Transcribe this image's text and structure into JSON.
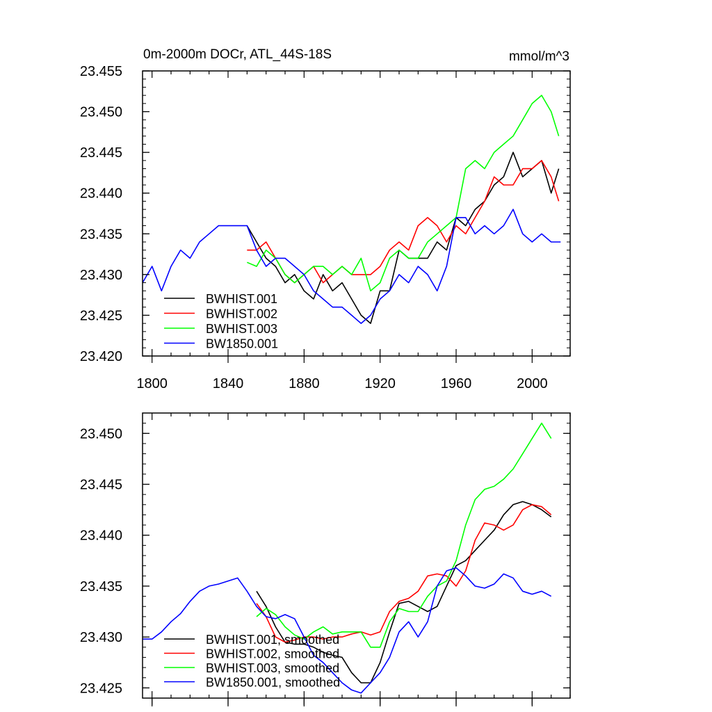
{
  "chart_data": [
    {
      "type": "line",
      "title": "0m-2000m DOCr, ATL_44S-18S",
      "units": "mmol/m^3",
      "xlim": [
        1795,
        2020
      ],
      "ylim": [
        23.42,
        23.455
      ],
      "x_ticks": [
        1800,
        1840,
        1880,
        1920,
        1960,
        2000
      ],
      "x_tick_labels": [
        "1800",
        "1840",
        "1880",
        "1920",
        "1960",
        "2000"
      ],
      "y_ticks": [
        23.42,
        23.425,
        23.43,
        23.435,
        23.44,
        23.445,
        23.45,
        23.455
      ],
      "y_tick_labels": [
        "23.420",
        "23.425",
        "23.430",
        "23.435",
        "23.440",
        "23.445",
        "23.450",
        "23.455"
      ],
      "legend_position": "bottom-left",
      "series": [
        {
          "name": "BWHIST.001",
          "color": "#000000",
          "x": [
            1850,
            1855,
            1860,
            1865,
            1870,
            1875,
            1880,
            1885,
            1890,
            1895,
            1900,
            1905,
            1910,
            1915,
            1920,
            1925,
            1930,
            1935,
            1940,
            1945,
            1950,
            1955,
            1960,
            1965,
            1970,
            1975,
            1980,
            1985,
            1990,
            1995,
            2000,
            2005,
            2010,
            2014
          ],
          "values": [
            23.436,
            23.434,
            23.432,
            23.431,
            23.429,
            23.43,
            23.428,
            23.427,
            23.43,
            23.428,
            23.429,
            23.427,
            23.425,
            23.424,
            23.428,
            23.428,
            23.433,
            23.432,
            23.432,
            23.432,
            23.434,
            23.433,
            23.437,
            23.436,
            23.438,
            23.439,
            23.441,
            23.442,
            23.445,
            23.442,
            23.443,
            23.444,
            23.44,
            23.443
          ]
        },
        {
          "name": "BWHIST.002",
          "color": "#ff0000",
          "x": [
            1850,
            1855,
            1860,
            1865,
            1870,
            1875,
            1880,
            1885,
            1890,
            1895,
            1900,
            1905,
            1910,
            1915,
            1920,
            1925,
            1930,
            1935,
            1940,
            1945,
            1950,
            1955,
            1960,
            1965,
            1970,
            1975,
            1980,
            1985,
            1990,
            1995,
            2000,
            2005,
            2010,
            2014
          ],
          "values": [
            23.433,
            23.433,
            23.434,
            23.432,
            23.43,
            23.429,
            23.43,
            23.431,
            23.429,
            23.43,
            23.431,
            23.43,
            23.43,
            23.43,
            23.431,
            23.433,
            23.434,
            23.433,
            23.436,
            23.437,
            23.436,
            23.434,
            23.436,
            23.435,
            23.437,
            23.439,
            23.442,
            23.441,
            23.441,
            23.443,
            23.443,
            23.444,
            23.442,
            23.439
          ]
        },
        {
          "name": "BWHIST.003",
          "color": "#00ff00",
          "x": [
            1850,
            1855,
            1860,
            1865,
            1870,
            1875,
            1880,
            1885,
            1890,
            1895,
            1900,
            1905,
            1910,
            1915,
            1920,
            1925,
            1930,
            1935,
            1940,
            1945,
            1950,
            1955,
            1960,
            1965,
            1970,
            1975,
            1980,
            1985,
            1990,
            1995,
            2000,
            2005,
            2010,
            2014
          ],
          "values": [
            23.4315,
            23.431,
            23.433,
            23.432,
            23.43,
            23.429,
            23.43,
            23.431,
            23.431,
            23.43,
            23.431,
            23.43,
            23.432,
            23.428,
            23.429,
            23.432,
            23.433,
            23.432,
            23.432,
            23.434,
            23.435,
            23.436,
            23.437,
            23.443,
            23.444,
            23.443,
            23.445,
            23.446,
            23.447,
            23.449,
            23.451,
            23.452,
            23.45,
            23.447
          ]
        },
        {
          "name": "BW1850.001",
          "color": "#0000ff",
          "x": [
            1795,
            1800,
            1805,
            1810,
            1815,
            1820,
            1825,
            1830,
            1835,
            1840,
            1845,
            1850,
            1855,
            1860,
            1865,
            1870,
            1875,
            1880,
            1885,
            1890,
            1895,
            1900,
            1905,
            1910,
            1915,
            1920,
            1925,
            1930,
            1935,
            1940,
            1945,
            1950,
            1955,
            1960,
            1965,
            1970,
            1975,
            1980,
            1985,
            1990,
            1995,
            2000,
            2005,
            2010,
            2015
          ],
          "values": [
            23.429,
            23.431,
            23.428,
            23.431,
            23.433,
            23.432,
            23.434,
            23.435,
            23.436,
            23.436,
            23.436,
            23.436,
            23.433,
            23.431,
            23.432,
            23.432,
            23.431,
            23.43,
            23.428,
            23.427,
            23.426,
            23.426,
            23.425,
            23.424,
            23.425,
            23.427,
            23.428,
            23.43,
            23.429,
            23.431,
            23.43,
            23.428,
            23.431,
            23.437,
            23.437,
            23.435,
            23.436,
            23.435,
            23.436,
            23.438,
            23.435,
            23.434,
            23.435,
            23.434,
            23.434
          ]
        }
      ]
    },
    {
      "type": "line",
      "xlim": [
        1795,
        2020
      ],
      "ylim": [
        23.424,
        23.452
      ],
      "x_ticks": [
        1800,
        1840,
        1880,
        1920,
        1960,
        2000
      ],
      "y_ticks": [
        23.425,
        23.43,
        23.435,
        23.44,
        23.445,
        23.45
      ],
      "y_tick_labels": [
        "23.425",
        "23.430",
        "23.435",
        "23.440",
        "23.445",
        "23.450"
      ],
      "legend_position": "bottom-left",
      "series": [
        {
          "name": "BWHIST.001, smoothed",
          "color": "#000000",
          "x": [
            1855,
            1860,
            1865,
            1870,
            1875,
            1880,
            1885,
            1890,
            1895,
            1900,
            1905,
            1910,
            1915,
            1920,
            1925,
            1930,
            1935,
            1940,
            1945,
            1950,
            1955,
            1960,
            1965,
            1970,
            1975,
            1980,
            1985,
            1990,
            1995,
            2000,
            2005,
            2010
          ],
          "values": [
            23.4345,
            23.433,
            23.431,
            23.4295,
            23.4293,
            23.4293,
            23.429,
            23.4285,
            23.4282,
            23.428,
            23.4265,
            23.4255,
            23.4255,
            23.4275,
            23.4305,
            23.4333,
            23.4335,
            23.433,
            23.4325,
            23.433,
            23.435,
            23.437,
            23.4375,
            23.4385,
            23.4395,
            23.4405,
            23.442,
            23.443,
            23.4433,
            23.443,
            23.4425,
            23.4418
          ]
        },
        {
          "name": "BWHIST.002, smoothed",
          "color": "#ff0000",
          "x": [
            1855,
            1860,
            1865,
            1870,
            1875,
            1880,
            1885,
            1890,
            1895,
            1900,
            1905,
            1910,
            1915,
            1920,
            1925,
            1930,
            1935,
            1940,
            1945,
            1950,
            1955,
            1960,
            1965,
            1970,
            1975,
            1980,
            1985,
            1990,
            1995,
            2000,
            2005,
            2010
          ],
          "values": [
            23.4333,
            23.432,
            23.43,
            23.4295,
            23.4297,
            23.43,
            23.43,
            23.4298,
            23.43,
            23.43,
            23.4303,
            23.4305,
            23.4302,
            23.4305,
            23.4325,
            23.4335,
            23.4338,
            23.4345,
            23.436,
            23.4362,
            23.436,
            23.435,
            23.4365,
            23.4395,
            23.4412,
            23.441,
            23.4405,
            23.441,
            23.4425,
            23.443,
            23.4428,
            23.442
          ]
        },
        {
          "name": "BWHIST.003, smoothed",
          "color": "#00ff00",
          "x": [
            1855,
            1860,
            1865,
            1870,
            1875,
            1880,
            1885,
            1890,
            1895,
            1900,
            1905,
            1910,
            1915,
            1920,
            1925,
            1930,
            1935,
            1940,
            1945,
            1950,
            1955,
            1960,
            1965,
            1970,
            1975,
            1980,
            1985,
            1990,
            1995,
            2000,
            2005,
            2010
          ],
          "values": [
            23.432,
            23.4328,
            23.4322,
            23.431,
            23.4302,
            23.4298,
            23.4305,
            23.431,
            23.4303,
            23.4305,
            23.4305,
            23.4305,
            23.429,
            23.429,
            23.4315,
            23.4328,
            23.4325,
            23.4325,
            23.434,
            23.435,
            23.4355,
            23.4375,
            23.441,
            23.4435,
            23.4445,
            23.4448,
            23.4455,
            23.4465,
            23.448,
            23.4495,
            23.451,
            23.4495
          ]
        },
        {
          "name": "BW1850.001, smoothed",
          "color": "#0000ff",
          "x": [
            1795,
            1800,
            1805,
            1810,
            1815,
            1820,
            1825,
            1830,
            1835,
            1840,
            1845,
            1850,
            1855,
            1860,
            1865,
            1870,
            1875,
            1880,
            1885,
            1890,
            1895,
            1900,
            1905,
            1910,
            1915,
            1920,
            1925,
            1930,
            1935,
            1940,
            1945,
            1950,
            1955,
            1960,
            1965,
            1970,
            1975,
            1980,
            1985,
            1990,
            1995,
            2000,
            2005,
            2010
          ],
          "values": [
            23.4298,
            23.4298,
            23.4305,
            23.4315,
            23.4323,
            23.4335,
            23.4345,
            23.435,
            23.4352,
            23.4355,
            23.4358,
            23.4345,
            23.433,
            23.432,
            23.4318,
            23.4322,
            23.4318,
            23.43,
            23.4282,
            23.4275,
            23.4265,
            23.4255,
            23.4248,
            23.4245,
            23.4255,
            23.4265,
            23.428,
            23.4305,
            23.4315,
            23.43,
            23.4315,
            23.435,
            23.4365,
            23.4368,
            23.436,
            23.435,
            23.4348,
            23.4352,
            23.4362,
            23.4358,
            23.4345,
            23.4342,
            23.4345,
            23.434
          ]
        }
      ]
    }
  ]
}
